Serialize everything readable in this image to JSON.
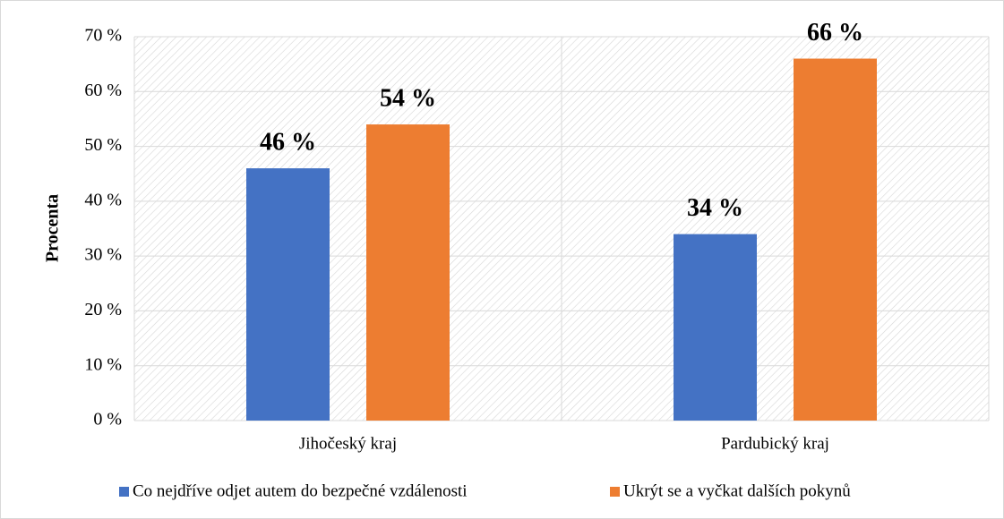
{
  "chart_data": {
    "type": "bar",
    "y_label": "Procenta",
    "categories": [
      "Jihočeský kraj",
      "Pardubický kraj"
    ],
    "series": [
      {
        "name": "Co nejdříve odjet autem do bezpečné vzdálenosti",
        "color": "#4472c4",
        "values": [
          46,
          34
        ],
        "value_labels": [
          "46 %",
          "34 %"
        ]
      },
      {
        "name": "Ukrýt se a vyčkat dalších pokynů",
        "color": "#ed7d31",
        "values": [
          54,
          66
        ],
        "value_labels": [
          "54 %",
          "66 %"
        ]
      }
    ],
    "ylim": [
      0,
      70
    ],
    "yticks": [
      {
        "value": 0,
        "label": "0 %"
      },
      {
        "value": 10,
        "label": "10 %"
      },
      {
        "value": 20,
        "label": "20 %"
      },
      {
        "value": 30,
        "label": "30 %"
      },
      {
        "value": 40,
        "label": "40 %"
      },
      {
        "value": 50,
        "label": "50 %"
      },
      {
        "value": 60,
        "label": "60 %"
      },
      {
        "value": 70,
        "label": "70 %"
      }
    ],
    "grid": true
  }
}
